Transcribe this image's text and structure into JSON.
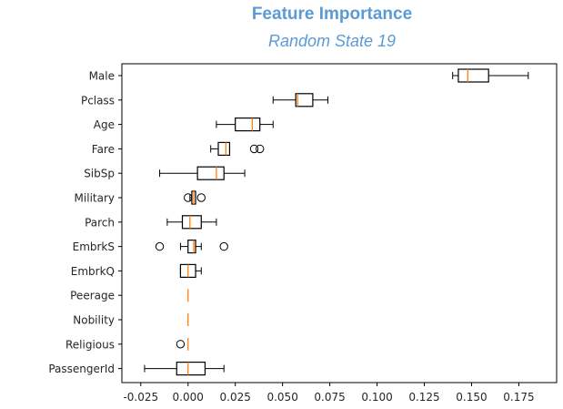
{
  "chart_data": {
    "type": "boxplot",
    "title": "Feature Importance",
    "subtitle": "Random State 19",
    "orientation": "horizontal",
    "xlim": [
      -0.035,
      0.195
    ],
    "xticks": [
      "-0.025",
      "0.000",
      "0.025",
      "0.050",
      "0.075",
      "0.100",
      "0.125",
      "0.150",
      "0.175"
    ],
    "xtick_values": [
      -0.025,
      0.0,
      0.025,
      0.05,
      0.075,
      0.1,
      0.125,
      0.15,
      0.175
    ],
    "grid": false,
    "colors": {
      "box": "#000000",
      "median": "#ff7f0e",
      "title": "#5b9bd5"
    },
    "boxes": [
      {
        "category": "Male",
        "whislo": 0.14,
        "q1": 0.143,
        "med": 0.148,
        "q3": 0.159,
        "whishi": 0.18,
        "fliers": []
      },
      {
        "category": "Pclass",
        "whislo": 0.045,
        "q1": 0.057,
        "med": 0.058,
        "q3": 0.066,
        "whishi": 0.074,
        "fliers": []
      },
      {
        "category": "Age",
        "whislo": 0.015,
        "q1": 0.025,
        "med": 0.034,
        "q3": 0.038,
        "whishi": 0.045,
        "fliers": []
      },
      {
        "category": "Fare",
        "whislo": 0.012,
        "q1": 0.016,
        "med": 0.02,
        "q3": 0.022,
        "whishi": 0.022,
        "fliers": [
          0.035,
          0.038
        ]
      },
      {
        "category": "SibSp",
        "whislo": -0.015,
        "q1": 0.005,
        "med": 0.015,
        "q3": 0.019,
        "whishi": 0.03,
        "fliers": []
      },
      {
        "category": "Military",
        "whislo": 0.001,
        "q1": 0.002,
        "med": 0.003,
        "q3": 0.004,
        "whishi": 0.004,
        "fliers": [
          0.0,
          0.007
        ]
      },
      {
        "category": "Parch",
        "whislo": -0.011,
        "q1": -0.003,
        "med": 0.001,
        "q3": 0.007,
        "whishi": 0.015,
        "fliers": []
      },
      {
        "category": "EmbrkS",
        "whislo": -0.004,
        "q1": 0.0,
        "med": 0.003,
        "q3": 0.004,
        "whishi": 0.007,
        "fliers": [
          -0.015,
          0.019
        ]
      },
      {
        "category": "EmbrkQ",
        "whislo": -0.004,
        "q1": -0.004,
        "med": 0.0,
        "q3": 0.004,
        "whishi": 0.007,
        "fliers": []
      },
      {
        "category": "Peerage",
        "whislo": 0.0,
        "q1": 0.0,
        "med": 0.0,
        "q3": 0.0,
        "whishi": 0.0,
        "fliers": []
      },
      {
        "category": "Nobility",
        "whislo": 0.0,
        "q1": 0.0,
        "med": 0.0,
        "q3": 0.0,
        "whishi": 0.0,
        "fliers": []
      },
      {
        "category": "Religious",
        "whislo": 0.0,
        "q1": 0.0,
        "med": 0.0,
        "q3": 0.0,
        "whishi": 0.0,
        "fliers": [
          -0.004
        ]
      },
      {
        "category": "PassengerId",
        "whislo": -0.023,
        "q1": -0.006,
        "med": 0.0,
        "q3": 0.009,
        "whishi": 0.019,
        "fliers": []
      }
    ]
  }
}
